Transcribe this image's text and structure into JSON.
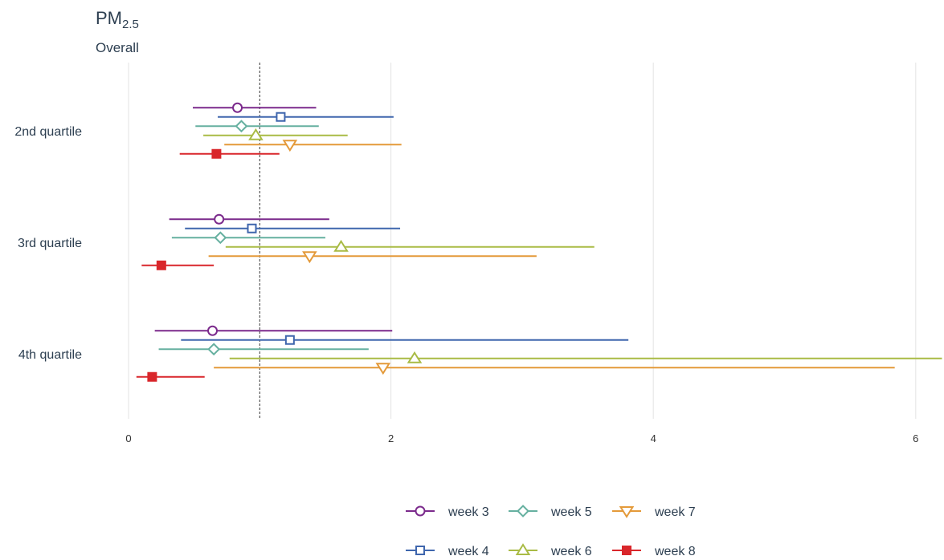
{
  "title_main": "PM",
  "title_sub": "2.5",
  "subtitle": "Overall",
  "chart_data": {
    "type": "forest",
    "categories": [
      "2nd quartile",
      "3rd quartile",
      "4th quartile"
    ],
    "xlim": [
      0,
      6.2
    ],
    "xticks": [
      "0",
      "2",
      "4",
      "6"
    ],
    "reference_line": 1,
    "grid": "vertical",
    "legend_position": "bottom",
    "series": [
      {
        "name": "week 3",
        "color": "#7b2a8c",
        "marker": "circle-open",
        "points": [
          {
            "estimate": 0.83,
            "lower": 0.49,
            "upper": 1.43
          },
          {
            "estimate": 0.69,
            "lower": 0.31,
            "upper": 1.53
          },
          {
            "estimate": 0.64,
            "lower": 0.2,
            "upper": 2.01
          }
        ]
      },
      {
        "name": "week 4",
        "color": "#3f66ad",
        "marker": "square-open",
        "points": [
          {
            "estimate": 1.16,
            "lower": 0.68,
            "upper": 2.02
          },
          {
            "estimate": 0.94,
            "lower": 0.43,
            "upper": 2.07
          },
          {
            "estimate": 1.23,
            "lower": 0.4,
            "upper": 3.81
          }
        ]
      },
      {
        "name": "week 5",
        "color": "#66b0a0",
        "marker": "diamond-open",
        "points": [
          {
            "estimate": 0.86,
            "lower": 0.51,
            "upper": 1.45
          },
          {
            "estimate": 0.7,
            "lower": 0.33,
            "upper": 1.5
          },
          {
            "estimate": 0.65,
            "lower": 0.23,
            "upper": 1.83
          }
        ]
      },
      {
        "name": "week 6",
        "color": "#a9bb45",
        "marker": "triangle-up-open",
        "points": [
          {
            "estimate": 0.97,
            "lower": 0.57,
            "upper": 1.67
          },
          {
            "estimate": 1.62,
            "lower": 0.74,
            "upper": 3.55
          },
          {
            "estimate": 2.18,
            "lower": 0.77,
            "upper": 6.2
          }
        ]
      },
      {
        "name": "week 7",
        "color": "#e49a3a",
        "marker": "triangle-down-open",
        "points": [
          {
            "estimate": 1.23,
            "lower": 0.73,
            "upper": 2.08
          },
          {
            "estimate": 1.38,
            "lower": 0.61,
            "upper": 3.11
          },
          {
            "estimate": 1.94,
            "lower": 0.65,
            "upper": 5.84
          }
        ]
      },
      {
        "name": "week 8",
        "color": "#d9262b",
        "marker": "square-filled",
        "points": [
          {
            "estimate": 0.67,
            "lower": 0.39,
            "upper": 1.15
          },
          {
            "estimate": 0.25,
            "lower": 0.1,
            "upper": 0.65
          },
          {
            "estimate": 0.18,
            "lower": 0.06,
            "upper": 0.58
          }
        ]
      }
    ]
  }
}
